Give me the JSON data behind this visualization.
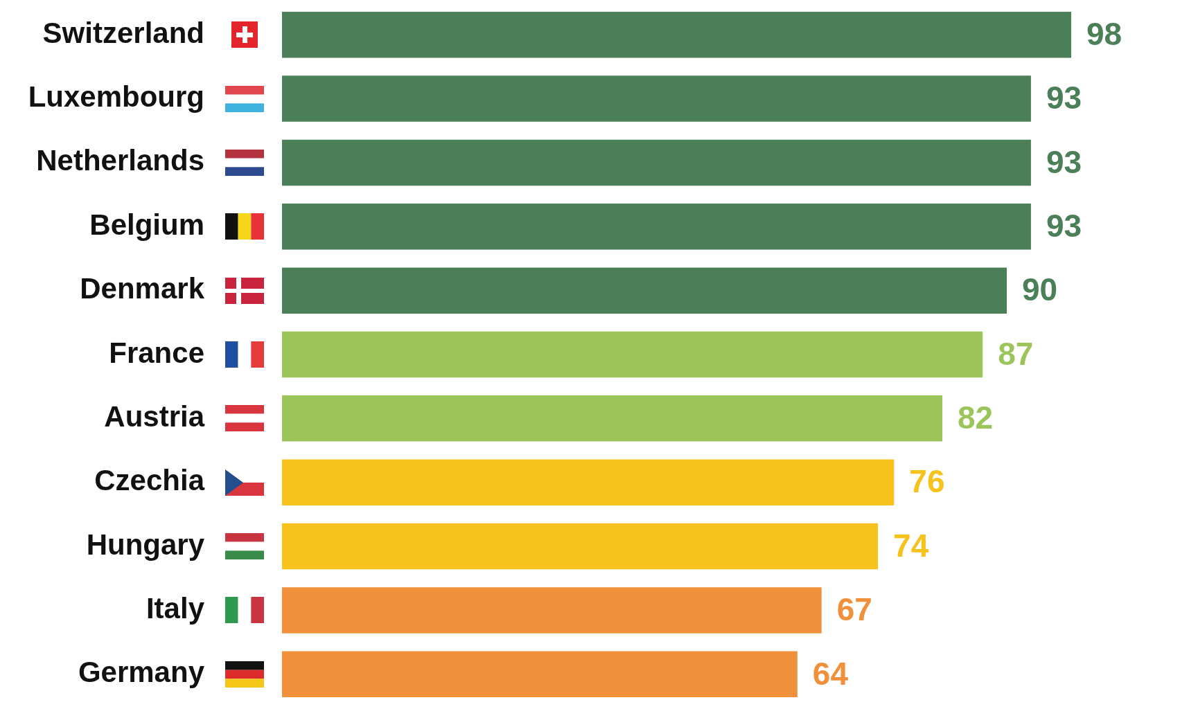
{
  "chart_data": {
    "type": "bar",
    "orientation": "horizontal",
    "categories": [
      "Switzerland",
      "Luxembourg",
      "Netherlands",
      "Belgium",
      "Denmark",
      "France",
      "Austria",
      "Czechia",
      "Hungary",
      "Italy",
      "Germany"
    ],
    "values": [
      98,
      93,
      93,
      93,
      90,
      87,
      82,
      76,
      74,
      67,
      64
    ],
    "colors": [
      "#4b7f58",
      "#4b7f58",
      "#4b7f58",
      "#4b7f58",
      "#4b7f58",
      "#9bc55a",
      "#9bc55a",
      "#f7c21c",
      "#f7c21c",
      "#f0903a",
      "#f0903a"
    ],
    "data_labels": true
  }
}
